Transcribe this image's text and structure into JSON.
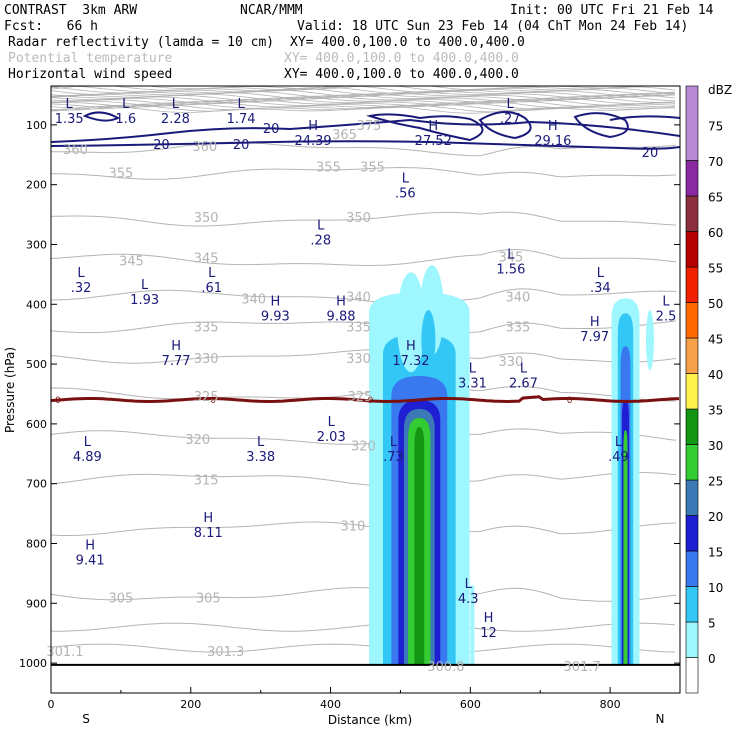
{
  "header": {
    "left1": "CONTRAST  3km ARW",
    "center1": "NCAR/MMM",
    "right1": "Init: 00 UTC Fri 21 Feb 14",
    "left2": "Fcst:   66 h",
    "right2": "Valid: 18 UTC Sun 23 Feb 14 (04 ChT Mon 24 Feb 14)",
    "field1": "Radar reflectivity (lamda = 10 cm)",
    "xy1": "XY= 400.0,100.0 to 400.0,400.0",
    "field2": "Potential temperature",
    "xy2": "XY= 400.0,100.0 to 400.0,400.0",
    "field3": "Horizontal wind speed",
    "xy3": "XY= 400.0,100.0 to 400.0,400.0"
  },
  "colors": {
    "theta": "#b4b4b4",
    "wind": "#1a1a7a",
    "freezing": "#7a1010",
    "reflectivity": [
      "#ffffff",
      "#9ef7ff",
      "#33c7f5",
      "#3a78f0",
      "#1e1ed2",
      "#3b79b6",
      "#33cc33",
      "#149614",
      "#fff24d",
      "#f7a04a",
      "#ff6a00",
      "#f02000",
      "#b40000",
      "#8c3040",
      "#8a2aa0",
      "#b88ad4"
    ]
  },
  "chart_data": {
    "type": "heatmap",
    "title": "",
    "xlabel": "Distance (km)",
    "ylabel": "Pressure (hPa)",
    "xlim": [
      0,
      900
    ],
    "ylim": [
      1050,
      35
    ],
    "x_ticks": [
      0,
      200,
      400,
      600,
      800
    ],
    "x_end_labels": [
      "S",
      "N"
    ],
    "y_ticks": [
      100,
      200,
      300,
      400,
      500,
      600,
      700,
      800,
      900,
      1000
    ],
    "colorbar": {
      "label": "dBZ",
      "levels": [
        0,
        5,
        10,
        15,
        20,
        25,
        30,
        35,
        40,
        45,
        50,
        55,
        60,
        65,
        70,
        75
      ]
    },
    "theta_contours": [
      {
        "value": "305",
        "p": 885
      },
      {
        "value": "310",
        "p": 775
      },
      {
        "value": "315",
        "p": 693
      },
      {
        "value": "320",
        "p": 623
      },
      {
        "value": "325",
        "p": 550
      },
      {
        "value": "330",
        "p": 487
      },
      {
        "value": "335",
        "p": 437
      },
      {
        "value": "340",
        "p": 388
      },
      {
        "value": "345",
        "p": 327
      },
      {
        "value": "350",
        "p": 258
      },
      {
        "value": "355",
        "p": 180
      },
      {
        "value": "360",
        "p": 140
      }
    ],
    "theta_labels": [
      {
        "text": "305",
        "x": 100,
        "p": 890
      },
      {
        "text": "305",
        "x": 225,
        "p": 890
      },
      {
        "text": "310",
        "x": 432,
        "p": 770
      },
      {
        "text": "315",
        "x": 222,
        "p": 693
      },
      {
        "text": "320",
        "x": 210,
        "p": 625
      },
      {
        "text": "320",
        "x": 447,
        "p": 636
      },
      {
        "text": "325",
        "x": 222,
        "p": 553
      },
      {
        "text": "325",
        "x": 442,
        "p": 553
      },
      {
        "text": "330",
        "x": 222,
        "p": 490
      },
      {
        "text": "330",
        "x": 440,
        "p": 490
      },
      {
        "text": "330",
        "x": 658,
        "p": 495
      },
      {
        "text": "335",
        "x": 222,
        "p": 437
      },
      {
        "text": "335",
        "x": 440,
        "p": 437
      },
      {
        "text": "335",
        "x": 668,
        "p": 437
      },
      {
        "text": "340",
        "x": 290,
        "p": 390
      },
      {
        "text": "340",
        "x": 440,
        "p": 387
      },
      {
        "text": "340",
        "x": 668,
        "p": 387
      },
      {
        "text": "345",
        "x": 115,
        "p": 327
      },
      {
        "text": "345",
        "x": 222,
        "p": 322
      },
      {
        "text": "345",
        "x": 658,
        "p": 320
      },
      {
        "text": "350",
        "x": 222,
        "p": 254
      },
      {
        "text": "350",
        "x": 440,
        "p": 254
      },
      {
        "text": "355",
        "x": 100,
        "p": 180
      },
      {
        "text": "355",
        "x": 397,
        "p": 170
      },
      {
        "text": "355",
        "x": 460,
        "p": 170
      },
      {
        "text": "360",
        "x": 35,
        "p": 140
      },
      {
        "text": "360",
        "x": 220,
        "p": 135
      },
      {
        "text": "365",
        "x": 420,
        "p": 115
      },
      {
        "text": "375",
        "x": 455,
        "p": 100
      },
      {
        "text": "301.1",
        "x": 20,
        "p": 980
      },
      {
        "text": "301.3",
        "x": 250,
        "p": 980
      },
      {
        "text": "300.8",
        "x": 565,
        "p": 1005
      },
      {
        "text": "301.7",
        "x": 760,
        "p": 1005
      }
    ],
    "wind_labels": [
      {
        "text": "20",
        "x": 315,
        "p": 105
      },
      {
        "text": "20",
        "x": 158,
        "p": 132
      },
      {
        "text": "20",
        "x": 272,
        "p": 132
      },
      {
        "text": "20",
        "x": 857,
        "p": 145
      }
    ],
    "freezing_level": {
      "label": "0",
      "p": 560,
      "label_x": [
        10,
        232,
        457,
        742
      ]
    },
    "extrema": [
      {
        "type": "L",
        "value": "1.35",
        "x": 26,
        "p": 75
      },
      {
        "type": "L",
        "value": "1.6",
        "x": 107,
        "p": 75
      },
      {
        "type": "L",
        "value": "2.28",
        "x": 178,
        "p": 75
      },
      {
        "type": "L",
        "value": "1.74",
        "x": 272,
        "p": 75
      },
      {
        "type": "H",
        "value": "24.39",
        "x": 375,
        "p": 112
      },
      {
        "type": "H",
        "value": "27.52",
        "x": 547,
        "p": 112
      },
      {
        "type": "L",
        "value": ".27",
        "x": 657,
        "p": 75
      },
      {
        "type": "H",
        "value": "29.16",
        "x": 718,
        "p": 112
      },
      {
        "type": "L",
        "value": ".56",
        "x": 507,
        "p": 200
      },
      {
        "type": "L",
        "value": ".28",
        "x": 386,
        "p": 278
      },
      {
        "type": "L",
        "value": ".32",
        "x": 43,
        "p": 358
      },
      {
        "type": "L",
        "value": "1.93",
        "x": 134,
        "p": 378
      },
      {
        "type": "L",
        "value": ".61",
        "x": 230,
        "p": 358
      },
      {
        "type": "L",
        "value": "1.56",
        "x": 658,
        "p": 327
      },
      {
        "type": "L",
        "value": ".34",
        "x": 786,
        "p": 358
      },
      {
        "type": "H",
        "value": "9.93",
        "x": 321,
        "p": 405
      },
      {
        "type": "H",
        "value": "9.88",
        "x": 415,
        "p": 405
      },
      {
        "type": "L",
        "value": "2.5",
        "x": 880,
        "p": 405
      },
      {
        "type": "H",
        "value": "7.97",
        "x": 778,
        "p": 440
      },
      {
        "type": "H",
        "value": "7.77",
        "x": 179,
        "p": 480
      },
      {
        "type": "H",
        "value": "17.32",
        "x": 515,
        "p": 480
      },
      {
        "type": "L",
        "value": "3.31",
        "x": 603,
        "p": 517
      },
      {
        "type": "L",
        "value": "2.67",
        "x": 676,
        "p": 517
      },
      {
        "type": "L",
        "value": "2.03",
        "x": 401,
        "p": 607
      },
      {
        "type": "L",
        "value": "4.89",
        "x": 52,
        "p": 640
      },
      {
        "type": "L",
        "value": "3.38",
        "x": 300,
        "p": 640
      },
      {
        "type": "L",
        "value": ".73",
        "x": 490,
        "p": 640
      },
      {
        "type": "L",
        "value": ".49",
        "x": 812,
        "p": 640
      },
      {
        "type": "H",
        "value": "8.11",
        "x": 225,
        "p": 767
      },
      {
        "type": "H",
        "value": "9.41",
        "x": 56,
        "p": 813
      },
      {
        "type": "L",
        "value": "4.3",
        "x": 597,
        "p": 878
      },
      {
        "type": "H",
        "value": "12",
        "x": 626,
        "p": 935
      }
    ]
  }
}
